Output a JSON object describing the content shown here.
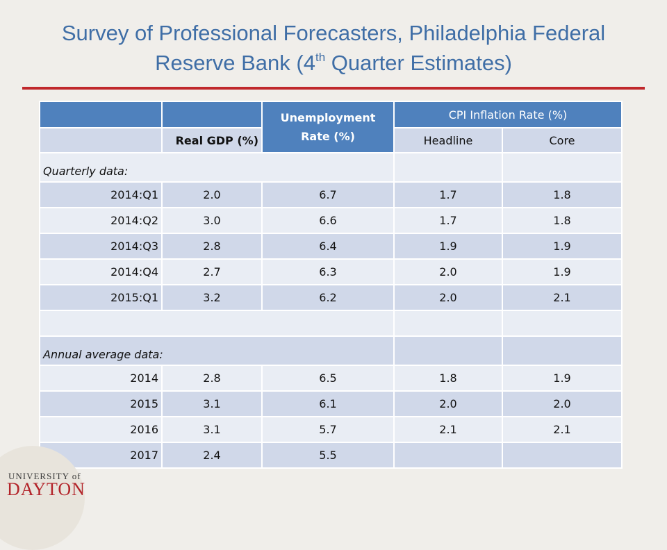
{
  "title": {
    "line1": "Survey of Professional Forecasters, Philadelphia Federal",
    "line2_prefix": "Reserve Bank (4",
    "line2_sup": "th",
    "line2_suffix": " Quarter Estimates)"
  },
  "table": {
    "headers": {
      "real_gdp": "Real GDP (%)",
      "unemployment": "Unemployment Rate (%)",
      "cpi": "CPI Inflation Rate (%)",
      "headline": "Headline",
      "core": "Core"
    },
    "sections": {
      "quarterly": "Quarterly data:",
      "annual": "Annual average data:"
    },
    "rows": [
      {
        "label": "2014:Q1",
        "gdp": "2.0",
        "unemp": "6.7",
        "headline": "1.7",
        "core": "1.8"
      },
      {
        "label": "2014:Q2",
        "gdp": "3.0",
        "unemp": "6.6",
        "headline": "1.7",
        "core": "1.8"
      },
      {
        "label": "2014:Q3",
        "gdp": "2.8",
        "unemp": "6.4",
        "headline": "1.9",
        "core": "1.9"
      },
      {
        "label": "2014:Q4",
        "gdp": "2.7",
        "unemp": "6.3",
        "headline": "2.0",
        "core": "1.9"
      },
      {
        "label": "2015:Q1",
        "gdp": "3.2",
        "unemp": "6.2",
        "headline": "2.0",
        "core": "2.1"
      },
      {
        "label": "2014",
        "gdp": "2.8",
        "unemp": "6.5",
        "headline": "1.8",
        "core": "1.9"
      },
      {
        "label": "2015",
        "gdp": "3.1",
        "unemp": "6.1",
        "headline": "2.0",
        "core": "2.0"
      },
      {
        "label": "2016",
        "gdp": "3.1",
        "unemp": "5.7",
        "headline": "2.1",
        "core": "2.1"
      },
      {
        "label": "2017",
        "gdp": "2.4",
        "unemp": "5.5",
        "headline": "",
        "core": ""
      }
    ]
  },
  "logo": {
    "top": "UNIVERSITY of",
    "main": "DAYTON"
  },
  "colors": {
    "title": "#3f6ea6",
    "rule": "#c0282c",
    "header": "#4f81bd",
    "row_dark": "#d0d8e9",
    "row_light": "#e9edf4",
    "logo_red": "#b3242a"
  }
}
